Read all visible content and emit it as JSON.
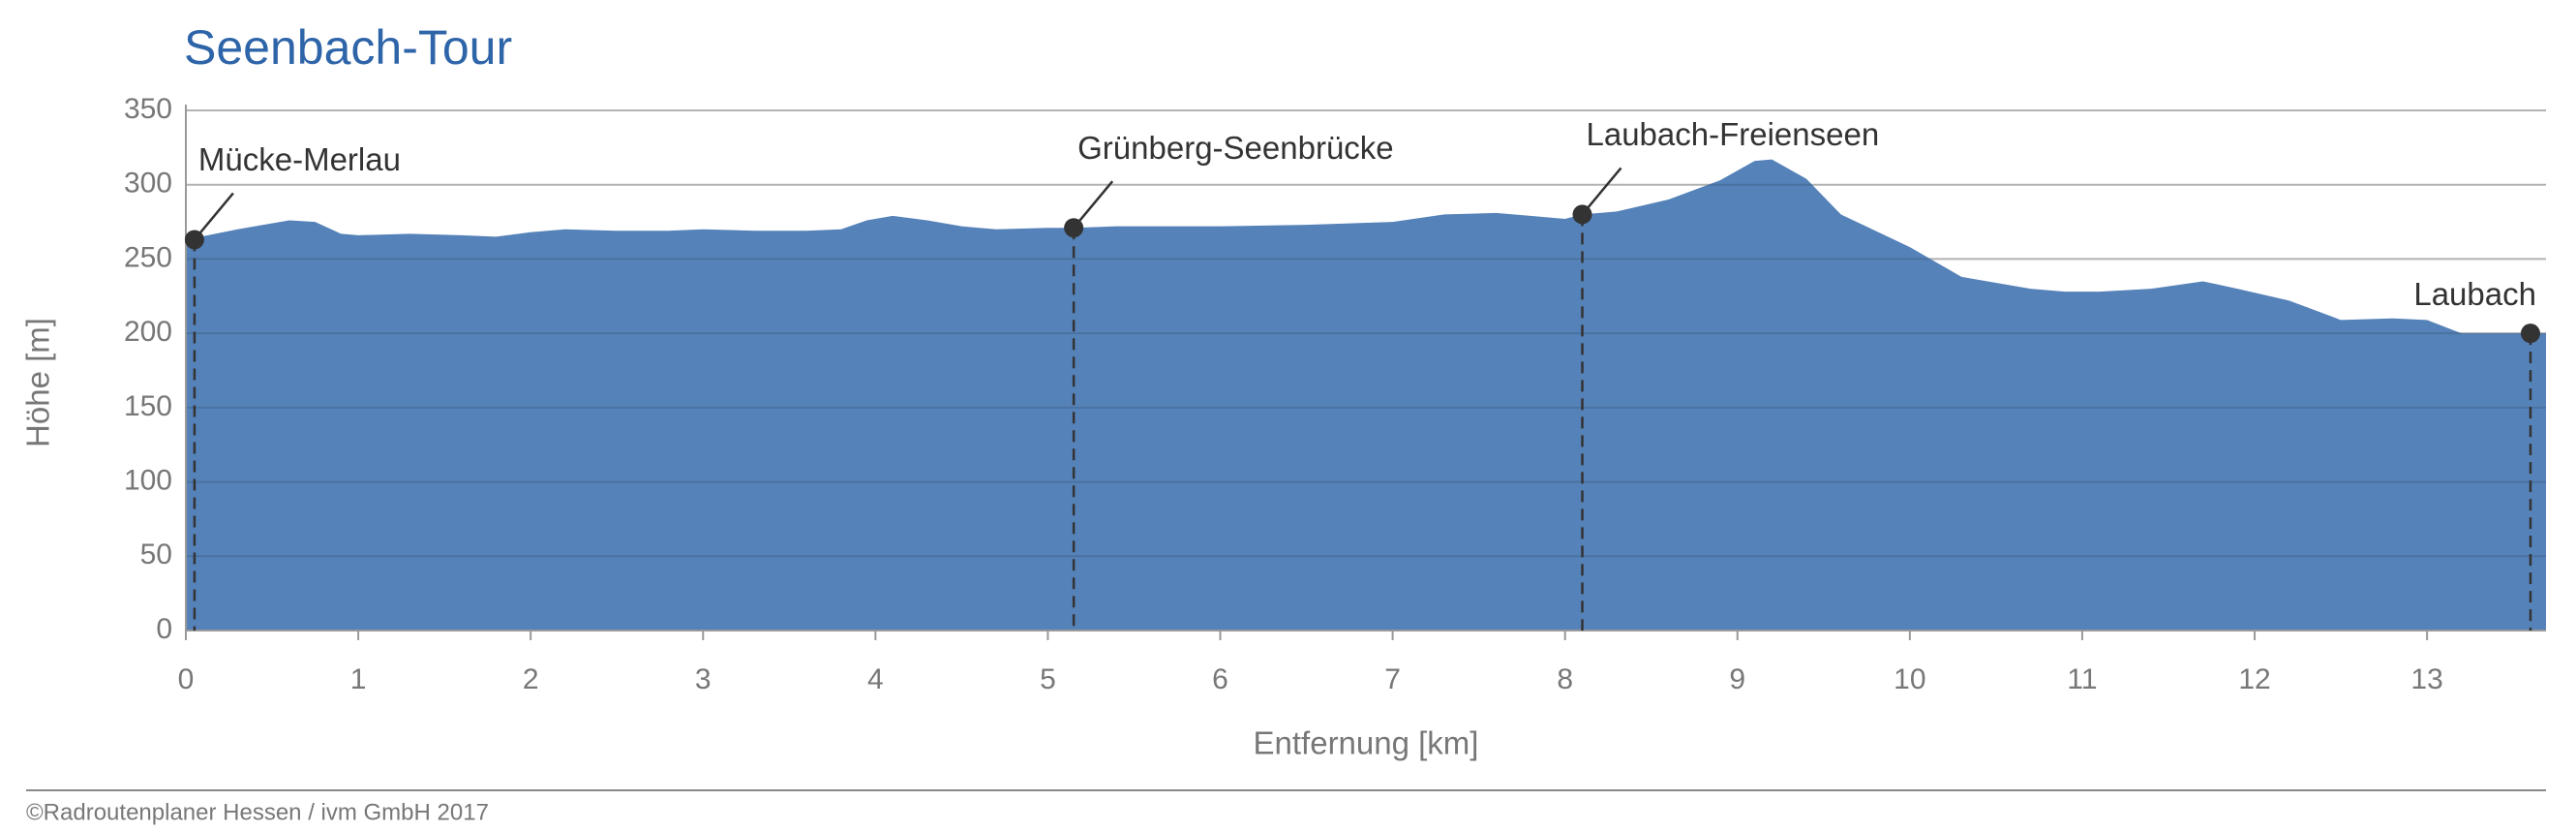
{
  "chart_data": {
    "type": "area",
    "title": "Seenbach-Tour",
    "x_label": "Entfernung [km]",
    "y_label": "Höhe [m]",
    "footer": "©Radroutenplaner Hessen / ivm GmbH 2017",
    "color": "#5582b8",
    "grid": true,
    "x": [
      0,
      0.3,
      0.6,
      0.75,
      0.9,
      1.0,
      1.3,
      1.6,
      1.8,
      2.0,
      2.2,
      2.5,
      2.8,
      3.0,
      3.3,
      3.6,
      3.8,
      3.95,
      4.1,
      4.3,
      4.5,
      4.7,
      5.0,
      5.15,
      5.4,
      5.8,
      6.0,
      6.5,
      7.0,
      7.3,
      7.6,
      7.8,
      8.0,
      8.1,
      8.3,
      8.6,
      8.9,
      9.1,
      9.2,
      9.4,
      9.6,
      9.8,
      10.0,
      10.3,
      10.7,
      10.9,
      11.1,
      11.4,
      11.7,
      11.9,
      12.2,
      12.5,
      12.8,
      13.0,
      13.2,
      13.6,
      13.69
    ],
    "values": [
      263,
      270,
      276,
      275,
      267,
      266,
      267,
      266,
      265,
      268,
      270,
      269,
      269,
      270,
      269,
      269,
      270,
      276,
      279,
      276,
      272,
      270,
      271,
      271,
      272,
      272,
      272,
      273,
      275,
      280,
      281,
      279,
      277,
      280,
      282,
      290,
      303,
      316,
      317,
      304,
      280,
      269,
      258,
      238,
      230,
      228,
      228,
      230,
      235,
      230,
      222,
      209,
      210,
      209,
      200,
      200,
      200
    ],
    "annotations": [
      {
        "label": "Mücke-Merlau",
        "x": 0.05,
        "y": 263
      },
      {
        "label": "Grünberg-Seenbrücke",
        "x": 5.15,
        "y": 271
      },
      {
        "label": "Laubach-Freienseen",
        "x": 8.1,
        "y": 280
      },
      {
        "label": "Laubach",
        "x": 13.6,
        "y": 200
      }
    ],
    "xlim": [
      0,
      13.69
    ],
    "ylim": [
      0,
      350
    ],
    "xticks": [
      0,
      1,
      2,
      3,
      4,
      5,
      6,
      7,
      8,
      9,
      10,
      11,
      12,
      13
    ],
    "yticks": [
      0,
      50,
      100,
      150,
      200,
      250,
      300,
      350
    ]
  }
}
